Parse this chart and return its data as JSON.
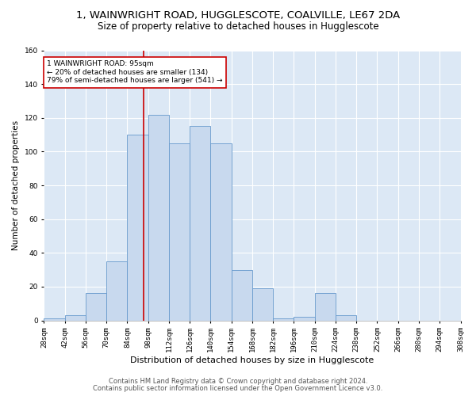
{
  "title": "1, WAINWRIGHT ROAD, HUGGLESCOTE, COALVILLE, LE67 2DA",
  "subtitle": "Size of property relative to detached houses in Hugglescote",
  "xlabel": "Distribution of detached houses by size in Hugglescote",
  "ylabel": "Number of detached properties",
  "bar_color": "#c8d9ee",
  "bar_edge_color": "#6699cc",
  "vline_value": 95,
  "vline_color": "#cc0000",
  "annotation_text": "1 WAINWRIGHT ROAD: 95sqm\n← 20% of detached houses are smaller (134)\n79% of semi-detached houses are larger (541) →",
  "bin_edges": [
    28,
    42,
    56,
    70,
    84,
    98,
    112,
    126,
    140,
    154,
    168,
    182,
    196,
    210,
    224,
    238,
    252,
    266,
    280,
    294,
    308
  ],
  "bin_labels": [
    "28sqm",
    "42sqm",
    "56sqm",
    "70sqm",
    "84sqm",
    "98sqm",
    "112sqm",
    "126sqm",
    "140sqm",
    "154sqm",
    "168sqm",
    "182sqm",
    "196sqm",
    "210sqm",
    "224sqm",
    "238sqm",
    "252sqm",
    "266sqm",
    "280sqm",
    "294sqm",
    "308sqm"
  ],
  "bar_heights": [
    1,
    3,
    16,
    35,
    110,
    122,
    105,
    115,
    105,
    30,
    19,
    1,
    2,
    16,
    3,
    0,
    0,
    0,
    0,
    0
  ],
  "ylim": [
    0,
    160
  ],
  "yticks": [
    0,
    20,
    40,
    60,
    80,
    100,
    120,
    140,
    160
  ],
  "background_color": "#dce8f5",
  "grid_color": "#ffffff",
  "footer_line1": "Contains HM Land Registry data © Crown copyright and database right 2024.",
  "footer_line2": "Contains public sector information licensed under the Open Government Licence v3.0.",
  "title_fontsize": 9.5,
  "subtitle_fontsize": 8.5,
  "xlabel_fontsize": 8,
  "ylabel_fontsize": 7.5,
  "tick_fontsize": 6.5,
  "footer_fontsize": 6
}
